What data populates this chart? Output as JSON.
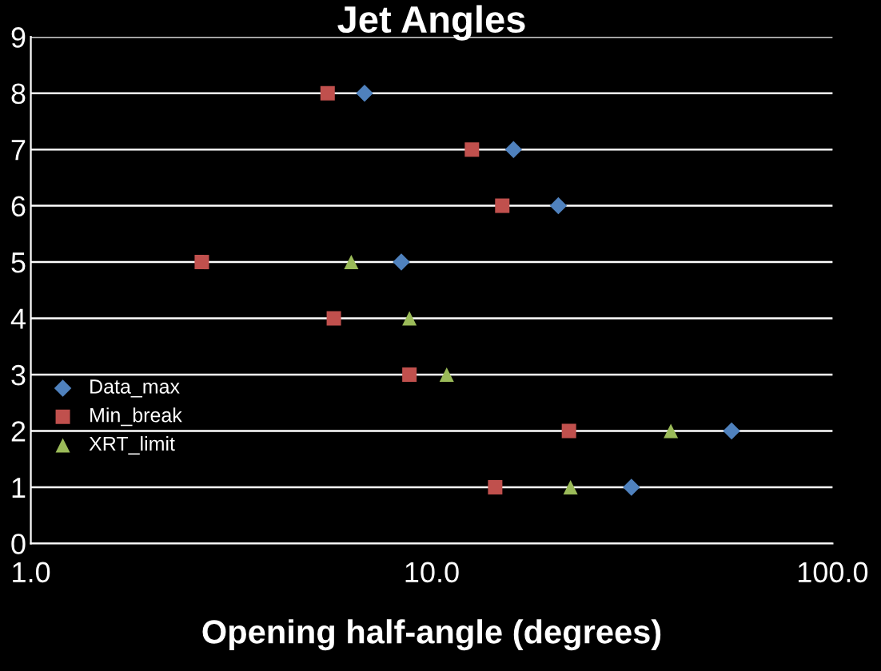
{
  "chart_data": {
    "type": "scatter",
    "title": "Jet Angles",
    "xlabel": "Opening half-angle (degrees)",
    "log": "x",
    "xlim": [
      1,
      100
    ],
    "xticks": [
      {
        "value": 1,
        "label": "1.0"
      },
      {
        "value": 10,
        "label": "10.0"
      },
      {
        "value": 100,
        "label": "100.0"
      }
    ],
    "ylim": [
      0,
      9
    ],
    "yticks": [
      0,
      1,
      2,
      3,
      4,
      5,
      6,
      7,
      8,
      9
    ],
    "grid": "y",
    "legend": "left",
    "series": [
      {
        "name": "Data_max",
        "color": "#4f81bd",
        "marker": "diamond",
        "x": [
          6.8,
          16.0,
          20.7,
          8.4,
          31.5,
          56
        ],
        "values": [
          8,
          7,
          6,
          5,
          1,
          2
        ]
      },
      {
        "name": "Min_break",
        "color": "#c0504d",
        "marker": "square",
        "x": [
          5.5,
          12.6,
          15.0,
          2.67,
          5.7,
          8.8,
          22.0,
          14.4
        ],
        "values": [
          8,
          7,
          6,
          5,
          4,
          3,
          2,
          1
        ]
      },
      {
        "name": "XRT_limit",
        "color": "#9bbb59",
        "marker": "triangle",
        "x": [
          6.3,
          8.8,
          10.9,
          39.5,
          22.2
        ],
        "values": [
          5,
          4,
          3,
          2,
          1
        ]
      }
    ]
  }
}
